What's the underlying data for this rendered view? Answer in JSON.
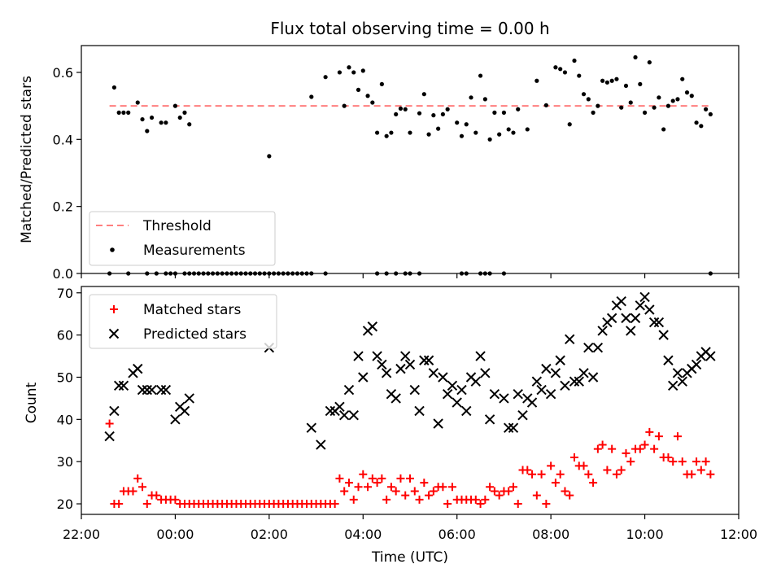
{
  "title": "Flux total observing time = 0.00 h",
  "colors": {
    "threshold": "#ff7f7f",
    "measurements": "#000000",
    "matched": "#ff0000",
    "predicted": "#000000"
  },
  "chart_data": [
    {
      "type": "scatter",
      "title": "Flux total observing time = 0.00 h",
      "xlabel": "",
      "ylabel": "Matched/Predicted stars",
      "ylim": [
        0,
        0.68
      ],
      "yticks": [
        0.0,
        0.2,
        0.4,
        0.6
      ],
      "ytick_labels": [
        "0.0",
        "0.2",
        "0.4",
        "0.6"
      ],
      "xlim_hours": [
        22.0,
        36.0
      ],
      "legend_position": "lower-left",
      "legend": [
        "Threshold",
        "Measurements"
      ],
      "threshold": {
        "name": "Threshold",
        "value": 0.5,
        "x_range_hours": [
          22.6,
          35.4
        ],
        "style": "dashed"
      },
      "series": [
        {
          "name": "Measurements",
          "x_hours": [
            22.7,
            22.8,
            22.9,
            23.0,
            23.2,
            23.3,
            23.4,
            23.5,
            23.7,
            23.8,
            24.0,
            24.1,
            24.2,
            24.3,
            26.0,
            26.9,
            27.2,
            27.5,
            27.6,
            27.7,
            27.8,
            27.9,
            28.0,
            28.1,
            28.2,
            28.3,
            28.4,
            28.5,
            28.6,
            28.7,
            28.8,
            28.9,
            29.0,
            29.2,
            29.3,
            29.4,
            29.5,
            29.6,
            29.7,
            29.8,
            30.0,
            30.1,
            30.2,
            30.3,
            30.4,
            30.5,
            30.6,
            30.7,
            30.8,
            30.9,
            31.0,
            31.1,
            31.2,
            31.3,
            31.5,
            31.7,
            31.9,
            32.1,
            32.2,
            32.3,
            32.4,
            32.5,
            32.6,
            32.7,
            32.8,
            32.9,
            33.0,
            33.1,
            33.2,
            33.3,
            33.4,
            33.5,
            33.6,
            33.7,
            33.8,
            33.9,
            34.0,
            34.1,
            34.2,
            34.3,
            34.4,
            34.5,
            34.6,
            34.7,
            34.8,
            34.9,
            35.0,
            35.1,
            35.2,
            35.3,
            35.4
          ],
          "y": [
            0.555,
            0.48,
            0.48,
            0.48,
            0.51,
            0.46,
            0.425,
            0.465,
            0.45,
            0.45,
            0.5,
            0.465,
            0.48,
            0.445,
            0.35,
            0.527,
            0.586,
            0.6,
            0.5,
            0.615,
            0.6,
            0.548,
            0.605,
            0.53,
            0.51,
            0.42,
            0.565,
            0.41,
            0.42,
            0.475,
            0.492,
            0.49,
            0.42,
            0.478,
            0.535,
            0.415,
            0.472,
            0.432,
            0.475,
            0.49,
            0.45,
            0.41,
            0.445,
            0.525,
            0.42,
            0.59,
            0.52,
            0.4,
            0.48,
            0.415,
            0.48,
            0.43,
            0.42,
            0.49,
            0.43,
            0.575,
            0.502,
            0.615,
            0.61,
            0.6,
            0.445,
            0.635,
            0.59,
            0.535,
            0.52,
            0.48,
            0.5,
            0.575,
            0.57,
            0.575,
            0.58,
            0.495,
            0.56,
            0.51,
            0.645,
            0.565,
            0.48,
            0.63,
            0.495,
            0.525,
            0.43,
            0.5,
            0.515,
            0.52,
            0.58,
            0.54,
            0.53,
            0.45,
            0.44,
            0.49,
            0.475
          ]
        },
        {
          "name": "Measurements (zero)",
          "x_hours": [
            22.6,
            23.0,
            23.4,
            23.6,
            23.8,
            23.9,
            24.0,
            24.2,
            24.3,
            24.4,
            24.5,
            24.6,
            24.7,
            24.8,
            24.9,
            25.0,
            25.1,
            25.2,
            25.3,
            25.4,
            25.5,
            25.6,
            25.7,
            25.8,
            25.9,
            26.0,
            26.1,
            26.2,
            26.3,
            26.4,
            26.5,
            26.6,
            26.7,
            26.8,
            26.9,
            27.2,
            28.3,
            28.5,
            28.7,
            28.9,
            29.0,
            29.2,
            30.1,
            30.2,
            30.5,
            30.6,
            30.7,
            31.0,
            35.4
          ],
          "y": [
            0,
            0,
            0,
            0,
            0,
            0,
            0,
            0,
            0,
            0,
            0,
            0,
            0,
            0,
            0,
            0,
            0,
            0,
            0,
            0,
            0,
            0,
            0,
            0,
            0,
            0,
            0,
            0,
            0,
            0,
            0,
            0,
            0,
            0,
            0,
            0,
            0,
            0,
            0,
            0,
            0,
            0,
            0,
            0,
            0,
            0,
            0,
            0,
            0
          ]
        }
      ]
    },
    {
      "type": "scatter",
      "xlabel": "Time (UTC)",
      "ylabel": "Count",
      "ylim": [
        17.5,
        71.5
      ],
      "yticks": [
        20,
        30,
        40,
        50,
        60,
        70
      ],
      "ytick_labels": [
        "20",
        "30",
        "40",
        "50",
        "60",
        "70"
      ],
      "xlim_hours": [
        22.0,
        36.0
      ],
      "xticks_hours": [
        22,
        24,
        26,
        28,
        30,
        32,
        34,
        36
      ],
      "xtick_labels": [
        "22:00",
        "00:00",
        "02:00",
        "04:00",
        "06:00",
        "08:00",
        "10:00",
        "12:00"
      ],
      "legend_position": "upper-left",
      "legend": [
        "Matched stars",
        "Predicted stars"
      ],
      "series": [
        {
          "name": "Matched stars",
          "x_hours": [
            22.6,
            22.7,
            22.8,
            22.9,
            23.0,
            23.1,
            23.2,
            23.3,
            23.4,
            23.5,
            23.6,
            23.7,
            23.8,
            23.9,
            24.0,
            24.1,
            24.2,
            24.3,
            24.4,
            24.5,
            24.6,
            24.7,
            24.8,
            24.9,
            25.0,
            25.1,
            25.2,
            25.3,
            25.4,
            25.5,
            25.6,
            25.7,
            25.8,
            25.9,
            26.0,
            26.1,
            26.2,
            26.3,
            26.4,
            26.5,
            26.6,
            26.7,
            26.8,
            26.9,
            27.0,
            27.1,
            27.2,
            27.3,
            27.4,
            27.5,
            27.6,
            27.7,
            27.8,
            27.9,
            28.0,
            28.1,
            28.2,
            28.3,
            28.4,
            28.5,
            28.6,
            28.7,
            28.8,
            28.9,
            29.0,
            29.1,
            29.2,
            29.3,
            29.4,
            29.5,
            29.6,
            29.7,
            29.8,
            29.9,
            30.0,
            30.1,
            30.2,
            30.3,
            30.4,
            30.5,
            30.6,
            30.7,
            30.8,
            30.9,
            31.0,
            31.1,
            31.2,
            31.3,
            31.4,
            31.5,
            31.6,
            31.7,
            31.8,
            31.9,
            32.0,
            32.1,
            32.2,
            32.3,
            32.4,
            32.5,
            32.6,
            32.7,
            32.8,
            32.9,
            33.0,
            33.1,
            33.2,
            33.3,
            33.4,
            33.5,
            33.6,
            33.7,
            33.8,
            33.9,
            34.0,
            34.1,
            34.2,
            34.3,
            34.4,
            34.5,
            34.6,
            34.7,
            34.8,
            34.9,
            35.0,
            35.1,
            35.2,
            35.3,
            35.4
          ],
          "y": [
            39,
            20,
            20,
            23,
            23,
            23,
            26,
            24,
            20,
            22,
            22,
            21,
            21,
            21,
            21,
            20,
            20,
            20,
            20,
            20,
            20,
            20,
            20,
            20,
            20,
            20,
            20,
            20,
            20,
            20,
            20,
            20,
            20,
            20,
            20,
            20,
            20,
            20,
            20,
            20,
            20,
            20,
            20,
            20,
            20,
            20,
            20,
            20,
            20,
            26,
            23,
            25,
            21,
            24,
            27,
            24,
            26,
            25,
            26,
            21,
            24,
            23,
            26,
            22,
            26,
            23,
            21,
            25,
            22,
            23,
            24,
            24,
            20,
            24,
            21,
            21,
            21,
            21,
            21,
            20,
            21,
            24,
            23,
            22,
            23,
            23,
            24,
            20,
            28,
            28,
            27,
            22,
            27,
            20,
            29,
            25,
            27,
            23,
            22,
            31,
            29,
            29,
            27,
            25,
            33,
            34,
            28,
            33,
            27,
            28,
            32,
            30,
            33,
            33,
            34,
            37,
            33,
            36,
            31,
            31,
            30,
            36,
            30,
            27,
            27,
            30,
            28,
            30,
            27
          ],
          "marker": "plus"
        },
        {
          "name": "Predicted stars",
          "x_hours": [
            22.6,
            22.7,
            22.8,
            22.9,
            23.1,
            23.2,
            23.3,
            23.4,
            23.5,
            23.7,
            23.8,
            24.0,
            24.1,
            24.2,
            24.3,
            26.0,
            26.9,
            27.1,
            27.3,
            27.4,
            27.5,
            27.6,
            27.7,
            27.8,
            27.9,
            28.0,
            28.1,
            28.2,
            28.3,
            28.4,
            28.5,
            28.6,
            28.7,
            28.8,
            28.9,
            29.0,
            29.1,
            29.2,
            29.3,
            29.4,
            29.5,
            29.6,
            29.7,
            29.8,
            29.9,
            30.0,
            30.1,
            30.2,
            30.3,
            30.4,
            30.5,
            30.6,
            30.7,
            30.8,
            31.0,
            31.1,
            31.2,
            31.3,
            31.4,
            31.5,
            31.6,
            31.7,
            31.8,
            31.9,
            32.0,
            32.1,
            32.2,
            32.3,
            32.4,
            32.5,
            32.6,
            32.7,
            32.8,
            32.9,
            33.0,
            33.1,
            33.2,
            33.3,
            33.4,
            33.5,
            33.6,
            33.7,
            33.8,
            33.9,
            34.0,
            34.1,
            34.2,
            34.3,
            34.4,
            34.5,
            34.6,
            34.7,
            34.8,
            34.9,
            35.0,
            35.1,
            35.2,
            35.3,
            35.4
          ],
          "y": [
            36,
            42,
            48,
            48,
            51,
            52,
            47,
            47,
            47,
            47,
            47,
            40,
            43,
            42,
            45,
            57,
            38,
            34,
            42,
            42,
            43,
            41,
            47,
            41,
            55,
            50,
            61,
            62,
            55,
            53,
            51,
            46,
            45,
            52,
            55,
            53,
            47,
            42,
            54,
            54,
            51,
            39,
            50,
            46,
            48,
            44,
            47,
            42,
            50,
            49,
            55,
            51,
            40,
            46,
            45,
            38,
            38,
            46,
            41,
            45,
            44,
            49,
            47,
            52,
            46,
            51,
            54,
            48,
            59,
            49,
            49,
            51,
            57,
            50,
            57,
            61,
            63,
            64,
            67,
            68,
            64,
            61,
            64,
            67,
            69,
            66,
            63,
            63,
            60,
            54,
            48,
            51,
            49,
            51,
            52,
            53,
            55,
            56,
            55
          ],
          "marker": "x"
        }
      ]
    }
  ]
}
